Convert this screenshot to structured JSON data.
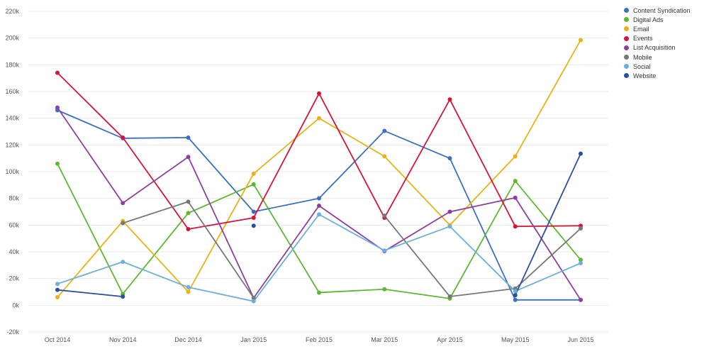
{
  "chart_data": {
    "type": "line",
    "title": "",
    "xlabel": "",
    "ylabel": "",
    "categories": [
      "Oct 2014",
      "Nov 2014",
      "Dec 2014",
      "Jan 2015",
      "Feb 2015",
      "Mar 2015",
      "Apr 2015",
      "May 2015",
      "Jun 2015"
    ],
    "ylim": [
      -20000,
      220000
    ],
    "yticks": [
      -20000,
      0,
      20000,
      40000,
      60000,
      80000,
      100000,
      120000,
      140000,
      160000,
      180000,
      200000,
      220000
    ],
    "ytick_labels": [
      "-20k",
      "0k",
      "20k",
      "40k",
      "60k",
      "80k",
      "100k",
      "120k",
      "140k",
      "160k",
      "180k",
      "200k",
      "220k"
    ],
    "grid": true,
    "legend_position": "right",
    "series": [
      {
        "name": "Content Syndication",
        "color": "#3a6fc4",
        "values": [
          146000,
          125000,
          125500,
          70000,
          80000,
          130500,
          110000,
          4000,
          4000
        ]
      },
      {
        "name": "Digital Ads",
        "color": "#5db830",
        "values": [
          106000,
          8500,
          69000,
          90500,
          9500,
          12000,
          5000,
          93000,
          34000
        ]
      },
      {
        "name": "Email",
        "color": "#e8b313",
        "values": [
          6000,
          63000,
          10000,
          98500,
          140000,
          111500,
          60000,
          111500,
          198500
        ]
      },
      {
        "name": "Events",
        "color": "#d6143a",
        "values": [
          174000,
          125500,
          57000,
          65500,
          158500,
          65500,
          154000,
          59000,
          59500
        ]
      },
      {
        "name": "List Acquisition",
        "color": "#8e3f9e",
        "values": [
          148000,
          76500,
          111000,
          5500,
          74500,
          40500,
          70000,
          80500,
          4000
        ]
      },
      {
        "name": "Mobile",
        "color": "#777777",
        "values": [
          null,
          61500,
          77500,
          5500,
          null,
          67000,
          6500,
          12500,
          57500
        ]
      },
      {
        "name": "Social",
        "color": "#6ab0dc",
        "values": [
          16000,
          32500,
          13500,
          3000,
          68000,
          41000,
          59000,
          10500,
          31500
        ]
      },
      {
        "name": "Website",
        "color": "#2a4f9c",
        "values": [
          11500,
          6500,
          null,
          59500,
          null,
          null,
          null,
          7500,
          113500
        ]
      }
    ]
  }
}
